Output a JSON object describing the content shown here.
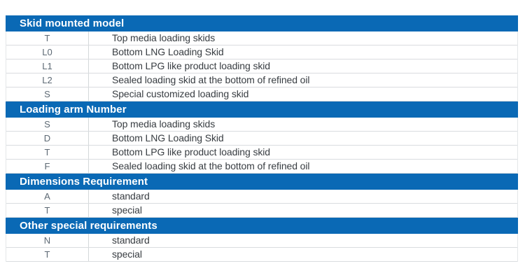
{
  "colors": {
    "header_bg": "#0a69b5",
    "header_text": "#ffffff",
    "code_text": "#5d6974",
    "desc_text": "#383d42",
    "row_border": "#d9dcdf",
    "background": "#ffffff"
  },
  "table": {
    "sections": [
      {
        "title": "Skid mounted model",
        "rows": [
          {
            "code": "T",
            "desc": "Top media loading skids"
          },
          {
            "code": "L0",
            "desc": "Bottom LNG Loading Skid"
          },
          {
            "code": "L1",
            "desc": "Bottom LPG like product loading skid"
          },
          {
            "code": "L2",
            "desc": "Sealed loading skid at the bottom of refined oil"
          },
          {
            "code": "S",
            "desc": "Special customized loading skid"
          }
        ]
      },
      {
        "title": "Loading arm Number",
        "rows": [
          {
            "code": "S",
            "desc": "Top media loading skids"
          },
          {
            "code": "D",
            "desc": "Bottom LNG Loading Skid"
          },
          {
            "code": "T",
            "desc": "Bottom LPG like product loading skid"
          },
          {
            "code": "F",
            "desc": "Sealed loading skid at the bottom of refined oil"
          }
        ]
      },
      {
        "title": "Dimensions Requirement",
        "rows": [
          {
            "code": "A",
            "desc": "standard"
          },
          {
            "code": "T",
            "desc": "special"
          }
        ]
      },
      {
        "title": "Other special requirements",
        "rows": [
          {
            "code": "N",
            "desc": "standard"
          },
          {
            "code": "T",
            "desc": "special"
          }
        ]
      }
    ]
  }
}
